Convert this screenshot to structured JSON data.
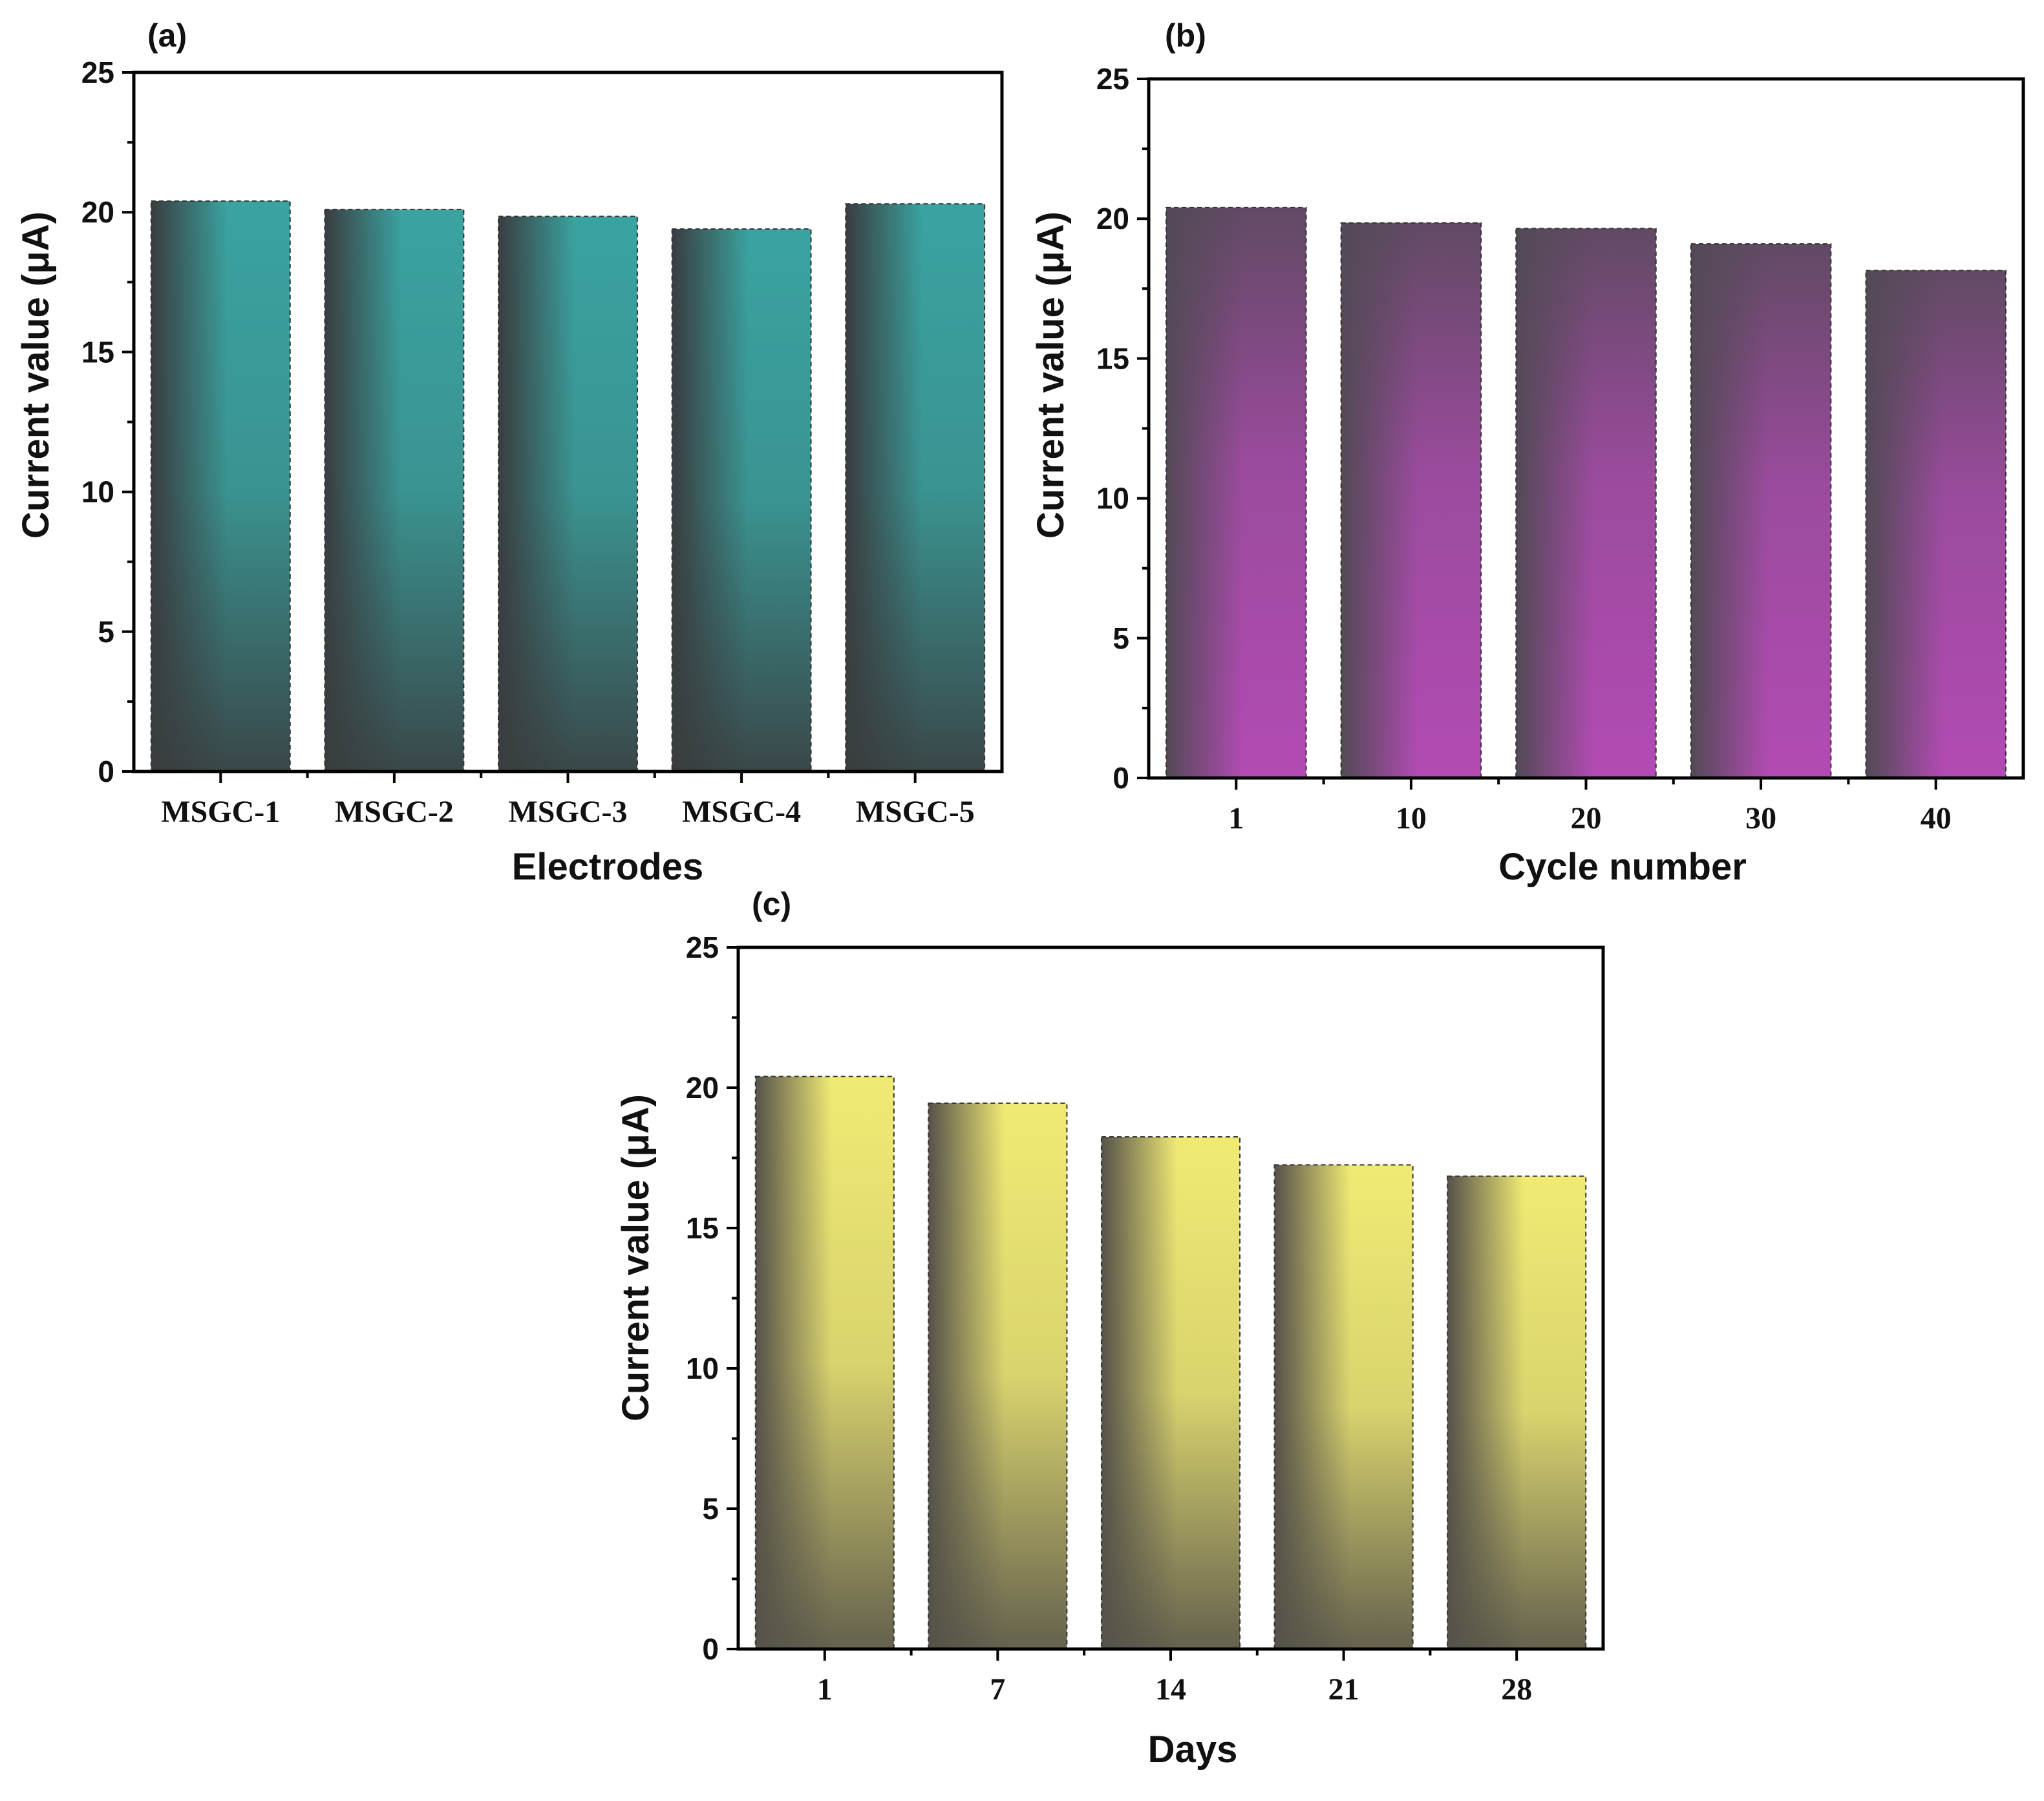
{
  "chart_data": [
    {
      "type": "bar",
      "panel": "(a)",
      "title": "",
      "categories": [
        "MSGC-1",
        "MSGC-2",
        "MSGC-3",
        "MSGC-4",
        "MSGC-5"
      ],
      "values": [
        20.4,
        20.1,
        19.85,
        19.4,
        20.3
      ],
      "xlabel": "Electrodes",
      "ylabel": "Current value (μA)",
      "ylim": [
        0,
        25
      ],
      "yticks": [
        "0",
        "5",
        "10",
        "15",
        "20",
        "25"
      ],
      "grid": false,
      "legend": "none",
      "colors": {
        "light": "#3aa3a0",
        "dark": "#3a3d3f"
      }
    },
    {
      "type": "bar",
      "panel": "(b)",
      "title": "",
      "categories": [
        "1",
        "10",
        "20",
        "30",
        "40"
      ],
      "values": [
        20.4,
        19.85,
        19.65,
        19.1,
        18.15
      ],
      "xlabel": "Cycle number",
      "ylabel": "Current value (μA)",
      "ylim": [
        0,
        25
      ],
      "yticks": [
        "0",
        "5",
        "10",
        "15",
        "20",
        "25"
      ],
      "grid": false,
      "legend": "none",
      "colors": {
        "light": "#b24bb4",
        "dark": "#534a56"
      }
    },
    {
      "type": "bar",
      "panel": "(c)",
      "title": "",
      "categories": [
        "1",
        "7",
        "14",
        "21",
        "28"
      ],
      "values": [
        20.4,
        19.45,
        18.25,
        17.25,
        16.85
      ],
      "xlabel": "Days",
      "ylabel": "Current value (μA)",
      "ylim": [
        0,
        25
      ],
      "yticks": [
        "0",
        "5",
        "10",
        "15",
        "20",
        "25"
      ],
      "grid": false,
      "legend": "none",
      "colors": {
        "light": "#f0ea74",
        "dark": "#55524a"
      }
    }
  ]
}
